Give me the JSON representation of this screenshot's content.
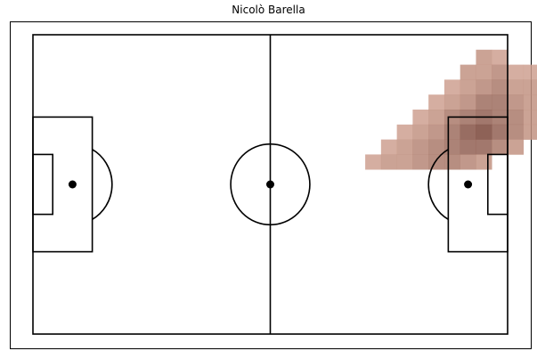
{
  "chart_data": {
    "type": "heatmap",
    "title": "Nicolò Barella",
    "xlabel": "",
    "ylabel": "",
    "xlim": [
      0,
      120
    ],
    "ylim": [
      0,
      80
    ],
    "grid": false,
    "legend": "none",
    "colormap": {
      "low": "#e6b9a8",
      "high": "#6e3a2e"
    },
    "pitch": {
      "length": 120,
      "width": 80,
      "line_color": "#000000",
      "halfway_x": 60,
      "centre": [
        60,
        40
      ],
      "centre_circle_radius": 10,
      "penalty_area_depth": 15,
      "penalty_area_width": 36,
      "six_yard_depth": 5,
      "six_yard_width": 16,
      "penalty_spot_distance": 10,
      "arc_radius": 10
    },
    "cells": [
      [
        28,
        1,
        0.3
      ],
      [
        29,
        1,
        0.2
      ],
      [
        27,
        2,
        0.3
      ],
      [
        28,
        2,
        0.3
      ],
      [
        29,
        2,
        0.4
      ],
      [
        30,
        2,
        0.2
      ],
      [
        31,
        2,
        0.2
      ],
      [
        26,
        3,
        0.2
      ],
      [
        27,
        3,
        0.3
      ],
      [
        28,
        3,
        0.4
      ],
      [
        29,
        3,
        0.5
      ],
      [
        30,
        3,
        0.3
      ],
      [
        31,
        3,
        0.3
      ],
      [
        32,
        3,
        0.2
      ],
      [
        25,
        4,
        0.2
      ],
      [
        26,
        4,
        0.3
      ],
      [
        27,
        4,
        0.4
      ],
      [
        28,
        4,
        0.6
      ],
      [
        29,
        4,
        0.6
      ],
      [
        30,
        4,
        0.4
      ],
      [
        31,
        4,
        0.3
      ],
      [
        32,
        4,
        0.2
      ],
      [
        24,
        5,
        0.2
      ],
      [
        25,
        5,
        0.3
      ],
      [
        26,
        5,
        0.5
      ],
      [
        27,
        5,
        0.6
      ],
      [
        28,
        5,
        0.7
      ],
      [
        29,
        5,
        0.6
      ],
      [
        30,
        5,
        0.5
      ],
      [
        31,
        5,
        0.3
      ],
      [
        32,
        5,
        0.2
      ],
      [
        23,
        6,
        0.2
      ],
      [
        24,
        6,
        0.3
      ],
      [
        25,
        6,
        0.4
      ],
      [
        26,
        6,
        0.6
      ],
      [
        27,
        6,
        0.8
      ],
      [
        28,
        6,
        0.9
      ],
      [
        29,
        6,
        0.7
      ],
      [
        30,
        6,
        0.5
      ],
      [
        31,
        6,
        0.3
      ],
      [
        22,
        7,
        0.2
      ],
      [
        23,
        7,
        0.3
      ],
      [
        24,
        7,
        0.4
      ],
      [
        25,
        7,
        0.5
      ],
      [
        26,
        7,
        0.6
      ],
      [
        27,
        7,
        0.7
      ],
      [
        28,
        7,
        0.7
      ],
      [
        29,
        7,
        0.5
      ],
      [
        30,
        7,
        0.3
      ],
      [
        21,
        8,
        0.2
      ],
      [
        22,
        8,
        0.3
      ],
      [
        23,
        8,
        0.3
      ],
      [
        24,
        8,
        0.4
      ],
      [
        25,
        8,
        0.5
      ],
      [
        26,
        8,
        0.5
      ],
      [
        27,
        8,
        0.4
      ],
      [
        28,
        8,
        0.3
      ]
    ]
  }
}
